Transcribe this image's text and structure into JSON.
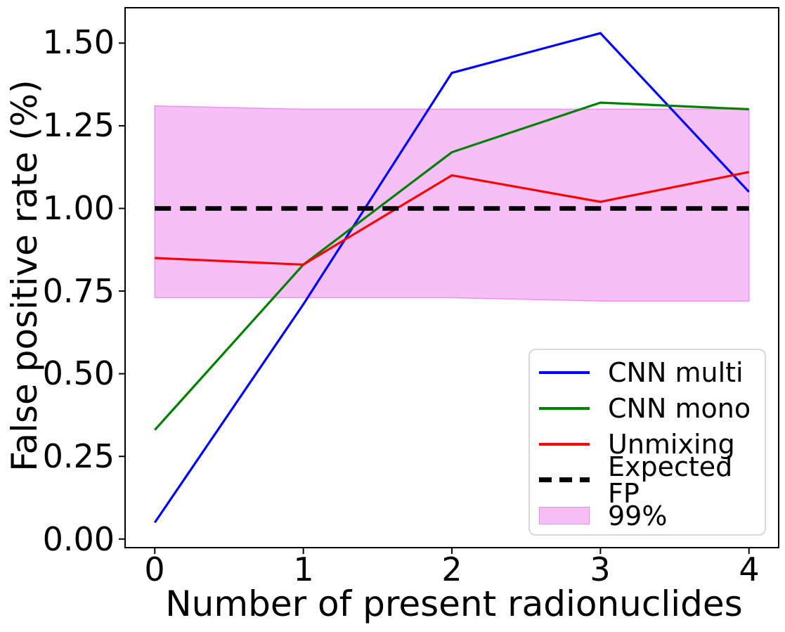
{
  "chart_data": {
    "type": "line",
    "title": "",
    "xlabel": "Number of present radionuclides",
    "ylabel": "False positive rate (%)",
    "x": [
      0,
      1,
      2,
      3,
      4
    ],
    "xticks": [
      "0",
      "1",
      "2",
      "3",
      "4"
    ],
    "yticks": [
      "0.00",
      "0.25",
      "0.50",
      "0.75",
      "1.00",
      "1.25",
      "1.50"
    ],
    "xlim": [
      -0.2,
      4.2
    ],
    "ylim": [
      -0.026,
      1.607
    ],
    "grid": false,
    "series": [
      {
        "name": "CNN multi",
        "color": "#0000ff",
        "style": "solid",
        "values": [
          0.05,
          0.71,
          1.41,
          1.53,
          1.05
        ]
      },
      {
        "name": "CNN mono",
        "color": "#008000",
        "style": "solid",
        "values": [
          0.33,
          0.83,
          1.17,
          1.32,
          1.3
        ]
      },
      {
        "name": "Unmixing",
        "color": "#ff0000",
        "style": "solid",
        "values": [
          0.85,
          0.83,
          1.1,
          1.02,
          1.11
        ]
      },
      {
        "name": "Expected FP",
        "color": "#000000",
        "style": "dashed",
        "values": [
          1.0,
          1.0,
          1.0,
          1.0,
          1.0
        ]
      }
    ],
    "band": {
      "name": "99%",
      "color": "#ee82ee",
      "fill_alpha": 0.5,
      "lower": [
        0.73,
        0.73,
        0.73,
        0.72,
        0.72
      ],
      "upper": [
        1.31,
        1.3,
        1.3,
        1.3,
        1.3
      ]
    },
    "legend": {
      "position": "lower right",
      "entries": [
        {
          "label": "CNN multi",
          "color": "#0000ff",
          "swatch": "line"
        },
        {
          "label": "CNN mono",
          "color": "#008000",
          "swatch": "line"
        },
        {
          "label": "Unmixing",
          "color": "#ff0000",
          "swatch": "line"
        },
        {
          "label": "Expected FP",
          "color": "#000000",
          "swatch": "dashed-line"
        },
        {
          "label": "99%",
          "color": "#ee82ee",
          "swatch": "patch"
        }
      ]
    }
  }
}
